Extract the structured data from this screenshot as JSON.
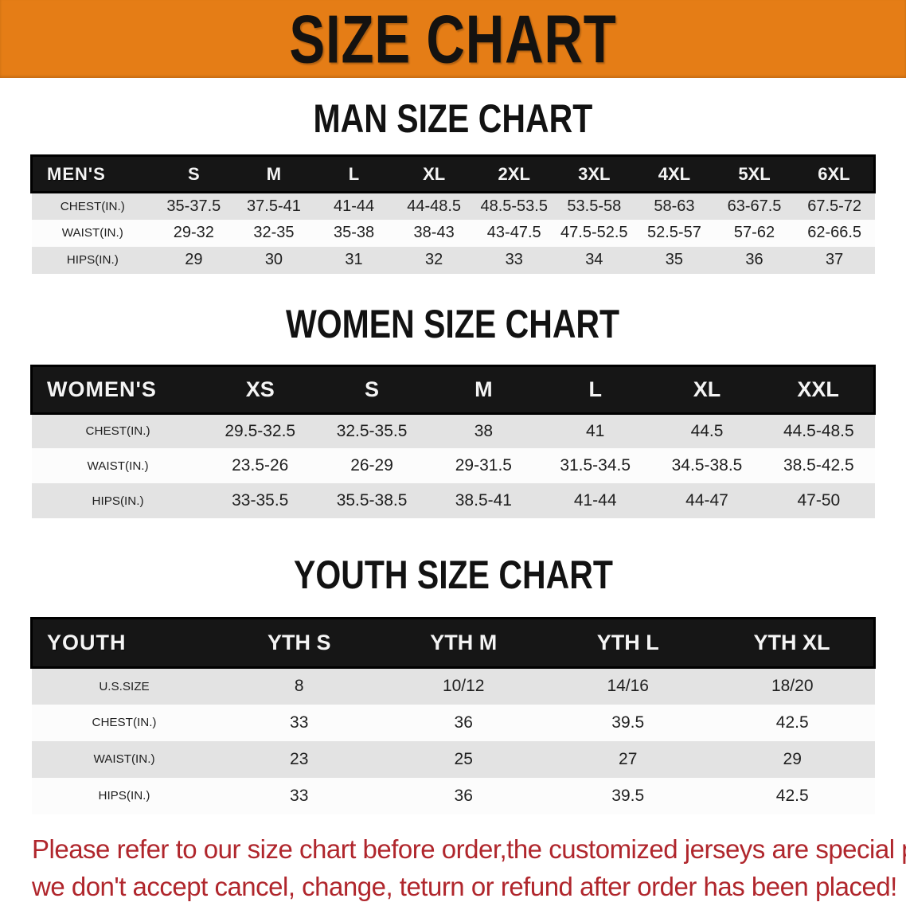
{
  "banner": {
    "title": "SIZE CHART",
    "background_color": "#e57d16",
    "title_color": "#141210"
  },
  "sections": [
    {
      "heading": "MAN SIZE CHART",
      "header_label": "MEN'S",
      "columns": [
        "S",
        "M",
        "L",
        "XL",
        "2XL",
        "3XL",
        "4XL",
        "5XL",
        "6XL"
      ],
      "rows": [
        {
          "label": "CHEST(IN.)",
          "values": [
            "35-37.5",
            "37.5-41",
            "41-44",
            "44-48.5",
            "48.5-53.5",
            "53.5-58",
            "58-63",
            "63-67.5",
            "67.5-72"
          ]
        },
        {
          "label": "WAIST(IN.)",
          "values": [
            "29-32",
            "32-35",
            "35-38",
            "38-43",
            "43-47.5",
            "47.5-52.5",
            "52.5-57",
            "57-62",
            "62-66.5"
          ]
        },
        {
          "label": "HIPS(IN.)",
          "values": [
            "29",
            "30",
            "31",
            "32",
            "33",
            "34",
            "35",
            "36",
            "37"
          ]
        }
      ]
    },
    {
      "heading": "WOMEN SIZE CHART",
      "header_label": "WOMEN'S",
      "columns": [
        "XS",
        "S",
        "M",
        "L",
        "XL",
        "XXL"
      ],
      "rows": [
        {
          "label": "CHEST(IN.)",
          "values": [
            "29.5-32.5",
            "32.5-35.5",
            "38",
            "41",
            "44.5",
            "44.5-48.5"
          ]
        },
        {
          "label": "WAIST(IN.)",
          "values": [
            "23.5-26",
            "26-29",
            "29-31.5",
            "31.5-34.5",
            "34.5-38.5",
            "38.5-42.5"
          ]
        },
        {
          "label": "HIPS(IN.)",
          "values": [
            "33-35.5",
            "35.5-38.5",
            "38.5-41",
            "41-44",
            "44-47",
            "47-50"
          ]
        }
      ]
    },
    {
      "heading": "YOUTH SIZE CHART",
      "header_label": "YOUTH",
      "columns": [
        "YTH S",
        "YTH M",
        "YTH L",
        "YTH XL"
      ],
      "rows": [
        {
          "label": "U.S.SIZE",
          "values": [
            "8",
            "10/12",
            "14/16",
            "18/20"
          ]
        },
        {
          "label": "CHEST(IN.)",
          "values": [
            "33",
            "36",
            "39.5",
            "42.5"
          ]
        },
        {
          "label": "WAIST(IN.)",
          "values": [
            "23",
            "25",
            "27",
            "29"
          ]
        },
        {
          "label": "HIPS(IN.)",
          "values": [
            "33",
            "36",
            "39.5",
            "42.5"
          ]
        }
      ]
    }
  ],
  "disclaimer": {
    "line1": "Please refer to our size chart before order,the customized jerseys are special products,",
    "line2": "we don't accept cancel, change, teturn or refund after order has been placed!",
    "text_color": "#b0262c"
  }
}
